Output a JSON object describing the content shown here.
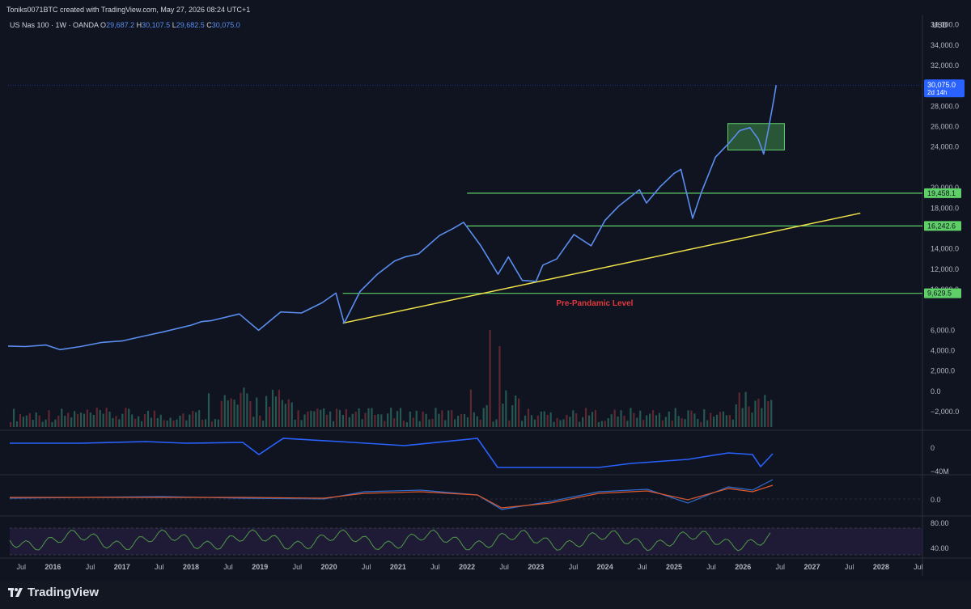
{
  "header": {
    "credit": "Toniks0071BTC created with TradingView.com, May 27, 2026 08:24 UTC+1",
    "symbol": "US Nas 100 · 1W · OANDA",
    "ohlc": {
      "o_label": "O",
      "o": "29,687.2",
      "h_label": "H",
      "h": "30,107.5",
      "l_label": "L",
      "l": "29,682.5",
      "c_label": "C",
      "c": "30,075.0"
    },
    "currency": "USD"
  },
  "brand": {
    "name": "TradingView"
  },
  "colors": {
    "background": "#0f1420",
    "price_line": "#5b8def",
    "level_line": "#5fd068",
    "trend_line": "#f2e34a",
    "label_red": "#e0393e",
    "current_price_bg": "#2962ff",
    "volume_up": "#2f6f62",
    "volume_down": "#7c2e35",
    "indicator_blue": "#2962ff",
    "macd_line": "#2f6ecf",
    "signal_line": "#e0582b",
    "rsi_line": "#4f9a46",
    "rsi_band": "#2a1f47"
  },
  "chart_data": {
    "type": "line",
    "title": "US Nas 100 · 1W · OANDA",
    "x_axis": {
      "range": [
        2015.35,
        2028.6
      ],
      "ticks": [
        {
          "x": 2015.54,
          "label": "Jul"
        },
        {
          "x": 2016.0,
          "label": "2016"
        },
        {
          "x": 2016.54,
          "label": "Jul"
        },
        {
          "x": 2017.0,
          "label": "2017"
        },
        {
          "x": 2017.54,
          "label": "Jul"
        },
        {
          "x": 2018.0,
          "label": "2018"
        },
        {
          "x": 2018.54,
          "label": "Jul"
        },
        {
          "x": 2019.0,
          "label": "2019"
        },
        {
          "x": 2019.54,
          "label": "Jul"
        },
        {
          "x": 2020.0,
          "label": "2020"
        },
        {
          "x": 2020.54,
          "label": "Jul"
        },
        {
          "x": 2021.0,
          "label": "2021"
        },
        {
          "x": 2021.54,
          "label": "Jul"
        },
        {
          "x": 2022.0,
          "label": "2022"
        },
        {
          "x": 2022.54,
          "label": "Jul"
        },
        {
          "x": 2023.0,
          "label": "2023"
        },
        {
          "x": 2023.54,
          "label": "Jul"
        },
        {
          "x": 2024.0,
          "label": "2024"
        },
        {
          "x": 2024.54,
          "label": "Jul"
        },
        {
          "x": 2025.0,
          "label": "2025"
        },
        {
          "x": 2025.54,
          "label": "Jul"
        },
        {
          "x": 2026.0,
          "label": "2026"
        },
        {
          "x": 2026.54,
          "label": "Jul"
        },
        {
          "x": 2027.0,
          "label": "2027"
        },
        {
          "x": 2027.54,
          "label": "Jul"
        },
        {
          "x": 2028.0,
          "label": "2028"
        },
        {
          "x": 2028.54,
          "label": "Jul"
        }
      ]
    },
    "y_axis": {
      "range": [
        -3500,
        37000
      ],
      "ticks": [
        {
          "v": 36000,
          "label": "36,000.0"
        },
        {
          "v": 34000,
          "label": "34,000.0"
        },
        {
          "v": 32000,
          "label": "32,000.0"
        },
        {
          "v": 28000,
          "label": "28,000.0"
        },
        {
          "v": 26000,
          "label": "26,000.0"
        },
        {
          "v": 24000,
          "label": "24,000.0"
        },
        {
          "v": 20000,
          "label": "20,000.0"
        },
        {
          "v": 18000,
          "label": "18,000.0"
        },
        {
          "v": 14000,
          "label": "14,000.0"
        },
        {
          "v": 12000,
          "label": "12,000.0"
        },
        {
          "v": 10000,
          "label": "10,000.0"
        },
        {
          "v": 6000,
          "label": "6,000.0"
        },
        {
          "v": 4000,
          "label": "4,000.0"
        },
        {
          "v": 2000,
          "label": "2,000.0"
        },
        {
          "v": 0,
          "label": "0.0"
        },
        {
          "v": -2000,
          "label": "−2,000.0"
        }
      ]
    },
    "series": [
      {
        "values": [
          [
            2015.35,
            4450
          ],
          [
            2015.6,
            4400
          ],
          [
            2015.9,
            4550
          ],
          [
            2016.1,
            4100
          ],
          [
            2016.4,
            4400
          ],
          [
            2016.7,
            4800
          ],
          [
            2017.0,
            4950
          ],
          [
            2017.3,
            5400
          ],
          [
            2017.6,
            5850
          ],
          [
            2018.0,
            6500
          ],
          [
            2018.15,
            6850
          ],
          [
            2018.3,
            6950
          ],
          [
            2018.7,
            7600
          ],
          [
            2018.98,
            6000
          ],
          [
            2019.3,
            7800
          ],
          [
            2019.6,
            7700
          ],
          [
            2019.9,
            8700
          ],
          [
            2020.1,
            9650
          ],
          [
            2020.22,
            6700
          ],
          [
            2020.45,
            9800
          ],
          [
            2020.7,
            11500
          ],
          [
            2020.95,
            12800
          ],
          [
            2021.1,
            13200
          ],
          [
            2021.3,
            13500
          ],
          [
            2021.6,
            15300
          ],
          [
            2021.8,
            16000
          ],
          [
            2021.95,
            16600
          ],
          [
            2022.2,
            14300
          ],
          [
            2022.45,
            11500
          ],
          [
            2022.6,
            13200
          ],
          [
            2022.8,
            10900
          ],
          [
            2023.0,
            10800
          ],
          [
            2023.1,
            12400
          ],
          [
            2023.3,
            13000
          ],
          [
            2023.55,
            15400
          ],
          [
            2023.8,
            14300
          ],
          [
            2024.0,
            16800
          ],
          [
            2024.2,
            18200
          ],
          [
            2024.5,
            19800
          ],
          [
            2024.6,
            18500
          ],
          [
            2024.8,
            20100
          ],
          [
            2025.0,
            21400
          ],
          [
            2025.1,
            21800
          ],
          [
            2025.27,
            17000
          ],
          [
            2025.4,
            19600
          ],
          [
            2025.6,
            23000
          ],
          [
            2025.8,
            24400
          ],
          [
            2025.95,
            25600
          ],
          [
            2026.1,
            25900
          ],
          [
            2026.22,
            24800
          ],
          [
            2026.3,
            23300
          ],
          [
            2026.37,
            25800
          ],
          [
            2026.45,
            28800
          ],
          [
            2026.48,
            30075
          ]
        ]
      }
    ],
    "current_price": {
      "label": "30,075.0",
      "countdown": "2d 14h",
      "value": 30075
    },
    "horizontal_levels": [
      {
        "value": 19458.1,
        "label": "19,458.1",
        "x_start": 2022.0
      },
      {
        "value": 16242.6,
        "label": "16,242.6",
        "x_start": 2022.0
      },
      {
        "value": 9629.5,
        "label": "9,629.5",
        "x_start": 2020.2
      }
    ],
    "trend_line": {
      "x1": 2020.2,
      "y1": 6700,
      "x2": 2027.7,
      "y2": 17500
    },
    "consolidation_box": {
      "x1": 2025.78,
      "x2": 2026.6,
      "y1": 23700,
      "y2": 26300
    },
    "annotations": [
      {
        "text": "Pre-Pandamic Level",
        "x": 2023.85,
        "y": 8400
      }
    ],
    "indicator_axes": [
      {
        "panel": "volume",
        "ticks": [
          {
            "v": 0,
            "label": "0"
          },
          {
            "v": -40,
            "label": "−40M"
          }
        ]
      },
      {
        "panel": "macd",
        "ticks": [
          {
            "v": 0,
            "label": "0.0"
          }
        ]
      },
      {
        "panel": "rsi",
        "ticks": [
          {
            "v": 80,
            "label": "80.00"
          },
          {
            "v": 40,
            "label": "40.00"
          }
        ]
      }
    ]
  }
}
